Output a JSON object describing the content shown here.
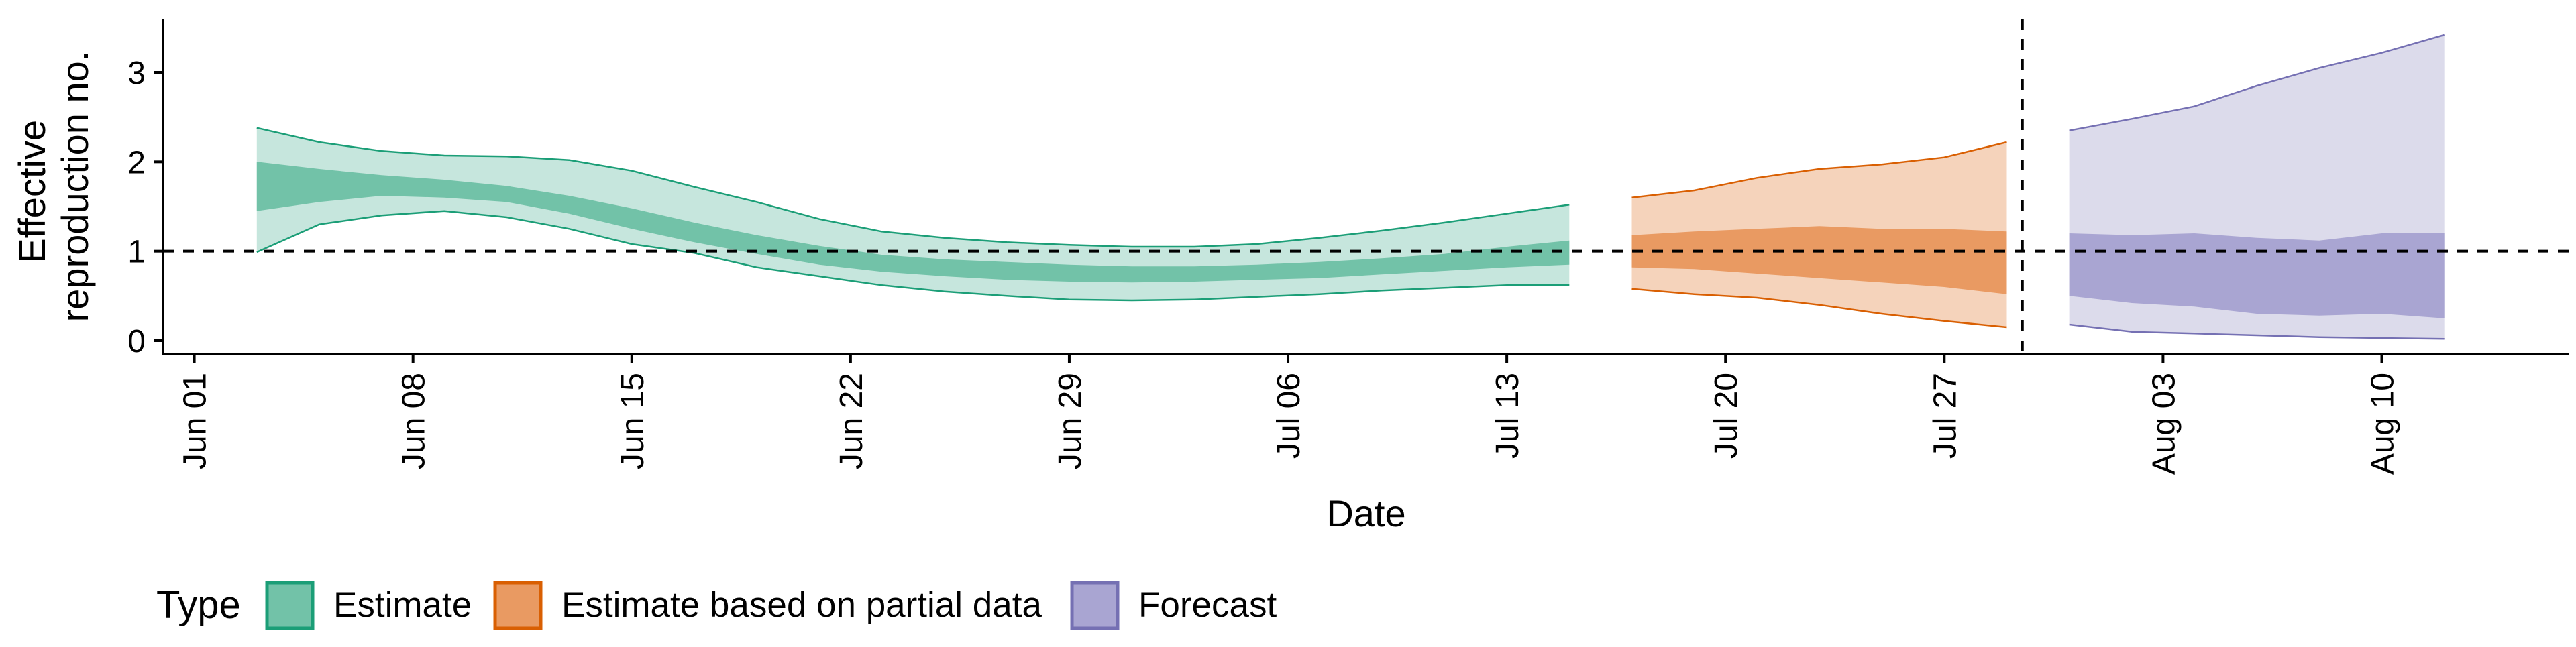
{
  "chart_data": {
    "type": "area",
    "title": "",
    "xlabel": "Date",
    "ylabel_lines": [
      "Effective",
      "reproduction no."
    ],
    "x_tick_labels": [
      "Jun 01",
      "Jun 08",
      "Jun 15",
      "Jun 22",
      "Jun 29",
      "Jul 06",
      "Jul 13",
      "Jul 20",
      "Jul 27",
      "Aug 03",
      "Aug 10"
    ],
    "x_tick_dates": [
      "2020-06-01",
      "2020-06-08",
      "2020-06-15",
      "2020-06-22",
      "2020-06-29",
      "2020-07-06",
      "2020-07-13",
      "2020-07-20",
      "2020-07-27",
      "2020-08-03",
      "2020-08-10"
    ],
    "y_ticks": [
      0,
      1,
      2,
      3
    ],
    "ylim": [
      -0.15,
      3.6
    ],
    "xlim": [
      "2020-05-31",
      "2020-08-16"
    ],
    "reference_line_y": 1,
    "forecast_boundary_date": "2020-07-29.5",
    "grid": false,
    "legend_position": "bottom-left",
    "legend_title": "Type",
    "series": [
      {
        "name": "Estimate",
        "color_outer": "#c6e6dd",
        "color_inner": "#72c2a8",
        "color_line": "#1b9e77",
        "x": [
          "2020-06-03",
          "2020-06-05",
          "2020-06-07",
          "2020-06-09",
          "2020-06-11",
          "2020-06-13",
          "2020-06-15",
          "2020-06-17",
          "2020-06-19",
          "2020-06-21",
          "2020-06-23",
          "2020-06-25",
          "2020-06-27",
          "2020-06-29",
          "2020-07-01",
          "2020-07-03",
          "2020-07-05",
          "2020-07-07",
          "2020-07-09",
          "2020-07-11",
          "2020-07-13",
          "2020-07-15"
        ],
        "lower90": [
          0.99,
          1.3,
          1.4,
          1.45,
          1.38,
          1.25,
          1.08,
          0.98,
          0.82,
          0.72,
          0.62,
          0.55,
          0.5,
          0.46,
          0.45,
          0.46,
          0.49,
          0.52,
          0.56,
          0.59,
          0.62,
          0.62
        ],
        "lower50": [
          1.45,
          1.55,
          1.62,
          1.6,
          1.55,
          1.42,
          1.25,
          1.1,
          0.97,
          0.85,
          0.77,
          0.72,
          0.68,
          0.66,
          0.65,
          0.66,
          0.68,
          0.7,
          0.74,
          0.78,
          0.82,
          0.85
        ],
        "upper50": [
          2.0,
          1.92,
          1.85,
          1.8,
          1.73,
          1.62,
          1.48,
          1.32,
          1.18,
          1.06,
          0.96,
          0.91,
          0.88,
          0.85,
          0.83,
          0.83,
          0.85,
          0.88,
          0.92,
          0.97,
          1.05,
          1.12
        ],
        "upper90": [
          2.38,
          2.22,
          2.12,
          2.07,
          2.06,
          2.02,
          1.9,
          1.72,
          1.55,
          1.36,
          1.22,
          1.15,
          1.1,
          1.07,
          1.05,
          1.05,
          1.08,
          1.15,
          1.23,
          1.32,
          1.42,
          1.52
        ]
      },
      {
        "name": "Estimate based on partial data",
        "color_outer": "#f5d3bb",
        "color_inner": "#e99a62",
        "color_line": "#d95f02",
        "x": [
          "2020-07-17",
          "2020-07-19",
          "2020-07-21",
          "2020-07-23",
          "2020-07-25",
          "2020-07-27",
          "2020-07-29"
        ],
        "lower90": [
          0.58,
          0.52,
          0.48,
          0.4,
          0.3,
          0.22,
          0.15
        ],
        "lower50": [
          0.82,
          0.8,
          0.75,
          0.7,
          0.65,
          0.6,
          0.52
        ],
        "upper50": [
          1.18,
          1.22,
          1.25,
          1.28,
          1.25,
          1.25,
          1.22
        ],
        "upper90": [
          1.6,
          1.68,
          1.82,
          1.92,
          1.97,
          2.05,
          2.22
        ]
      },
      {
        "name": "Forecast",
        "color_outer": "#dcdbeb",
        "color_inner": "#a9a5d2",
        "color_line": "#7570b3",
        "x": [
          "2020-07-31",
          "2020-08-02",
          "2020-08-04",
          "2020-08-06",
          "2020-08-08",
          "2020-08-10",
          "2020-08-12"
        ],
        "lower90": [
          0.18,
          0.1,
          0.08,
          0.06,
          0.04,
          0.03,
          0.02
        ],
        "lower50": [
          0.5,
          0.42,
          0.38,
          0.3,
          0.28,
          0.3,
          0.25
        ],
        "upper50": [
          1.2,
          1.18,
          1.2,
          1.15,
          1.12,
          1.2,
          1.2
        ],
        "upper90": [
          2.35,
          2.48,
          2.62,
          2.85,
          3.05,
          3.22,
          3.42
        ]
      }
    ]
  }
}
